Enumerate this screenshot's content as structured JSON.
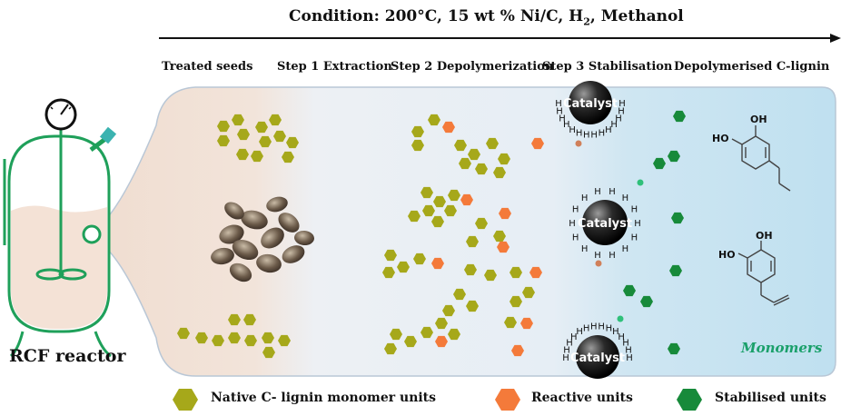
{
  "condition": {
    "prefix": "Condition:  200°C,  15 wt % Ni/C,  H",
    "subscript": "2",
    "suffix": ",  Methanol"
  },
  "steps": {
    "treated_seeds": "Treated seeds",
    "step1": "Step 1 Extraction",
    "step2": "Step 2 Depolymerization",
    "step3": "Step 3 Stabilisation",
    "product": "Depolymerised C-lignin"
  },
  "reactor_label": "RCF reactor",
  "catalyst_label": "Catalyst",
  "hydrogen_symbol": "H",
  "chem": {
    "oh": "OH",
    "ho": "HO"
  },
  "monomers_label": "Monomers",
  "legend": {
    "native": "Native C- lignin monomer units",
    "reactive": "Reactive units",
    "stabilised": "Stabilised units"
  },
  "colors": {
    "native": "#a6a81a",
    "reactive": "#f47a3a",
    "stabilised": "#178a3a",
    "reactor_green": "#1fa05a",
    "catalyst": "#222222"
  }
}
